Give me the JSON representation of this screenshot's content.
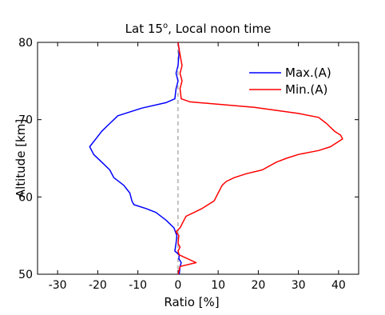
{
  "chart_data": {
    "type": "line",
    "title_main": "Lat 15",
    "title_degree": "o",
    "title_rest": ", Local noon time",
    "xlabel": "Ratio [%]",
    "ylabel": "Altitude [km]",
    "xlim": [
      -35,
      45
    ],
    "ylim": [
      50,
      80
    ],
    "xticks": [
      -30,
      -20,
      -10,
      0,
      10,
      20,
      30,
      40
    ],
    "yticks": [
      50,
      60,
      70,
      80
    ],
    "xtick_labels": [
      "-30",
      "-20",
      "-10",
      "0",
      "10",
      "20",
      "30",
      "40"
    ],
    "ytick_labels": [
      "50",
      "60",
      "70",
      "80"
    ],
    "zero_line": "dashed",
    "grid": false,
    "legend_position": "top-right",
    "series": [
      {
        "name": "Max.(A)",
        "color": "#0000ff",
        "points": [
          {
            "x": 0.0,
            "y": 80.0
          },
          {
            "x": 0.3,
            "y": 79.0
          },
          {
            "x": 0.0,
            "y": 77.0
          },
          {
            "x": -0.5,
            "y": 76.0
          },
          {
            "x": 0.0,
            "y": 75.0
          },
          {
            "x": -0.5,
            "y": 74.0
          },
          {
            "x": -0.8,
            "y": 72.7
          },
          {
            "x": -3.0,
            "y": 72.2
          },
          {
            "x": -9.0,
            "y": 71.5
          },
          {
            "x": -15.0,
            "y": 70.5
          },
          {
            "x": -17.0,
            "y": 69.5
          },
          {
            "x": -19.0,
            "y": 68.5
          },
          {
            "x": -20.5,
            "y": 67.5
          },
          {
            "x": -22.0,
            "y": 66.5
          },
          {
            "x": -21.0,
            "y": 65.5
          },
          {
            "x": -19.0,
            "y": 64.5
          },
          {
            "x": -17.0,
            "y": 63.5
          },
          {
            "x": -16.0,
            "y": 62.5
          },
          {
            "x": -13.5,
            "y": 61.5
          },
          {
            "x": -12.0,
            "y": 60.5
          },
          {
            "x": -11.5,
            "y": 59.5
          },
          {
            "x": -11.0,
            "y": 59.0
          },
          {
            "x": -8.0,
            "y": 58.5
          },
          {
            "x": -5.5,
            "y": 58.0
          },
          {
            "x": -3.0,
            "y": 57.0
          },
          {
            "x": -1.0,
            "y": 56.0
          },
          {
            "x": -0.3,
            "y": 55.0
          },
          {
            "x": -0.5,
            "y": 54.0
          },
          {
            "x": -0.8,
            "y": 53.0
          },
          {
            "x": 0.3,
            "y": 52.5
          },
          {
            "x": 0.2,
            "y": 52.0
          },
          {
            "x": 0.8,
            "y": 51.5
          },
          {
            "x": 0.5,
            "y": 51.0
          },
          {
            "x": 0.3,
            "y": 50.0
          }
        ]
      },
      {
        "name": "Min.(A)",
        "color": "#ff0000",
        "points": [
          {
            "x": 0.0,
            "y": 80.0
          },
          {
            "x": 0.3,
            "y": 79.0
          },
          {
            "x": 1.0,
            "y": 77.0
          },
          {
            "x": 0.5,
            "y": 76.0
          },
          {
            "x": 1.0,
            "y": 75.0
          },
          {
            "x": 0.5,
            "y": 74.0
          },
          {
            "x": 0.8,
            "y": 72.7
          },
          {
            "x": 3.0,
            "y": 72.3
          },
          {
            "x": 19.0,
            "y": 71.6
          },
          {
            "x": 30.0,
            "y": 70.8
          },
          {
            "x": 35.0,
            "y": 70.3
          },
          {
            "x": 37.0,
            "y": 69.5
          },
          {
            "x": 39.0,
            "y": 68.5
          },
          {
            "x": 40.5,
            "y": 68.0
          },
          {
            "x": 41.0,
            "y": 67.5
          },
          {
            "x": 38.0,
            "y": 66.5
          },
          {
            "x": 35.0,
            "y": 66.0
          },
          {
            "x": 30.0,
            "y": 65.5
          },
          {
            "x": 27.0,
            "y": 65.0
          },
          {
            "x": 24.5,
            "y": 64.5
          },
          {
            "x": 21.0,
            "y": 63.5
          },
          {
            "x": 17.0,
            "y": 63.0
          },
          {
            "x": 14.0,
            "y": 62.5
          },
          {
            "x": 12.0,
            "y": 62.0
          },
          {
            "x": 11.0,
            "y": 61.5
          },
          {
            "x": 10.0,
            "y": 60.5
          },
          {
            "x": 9.0,
            "y": 59.5
          },
          {
            "x": 6.0,
            "y": 58.5
          },
          {
            "x": 4.0,
            "y": 58.0
          },
          {
            "x": 2.0,
            "y": 57.5
          },
          {
            "x": 1.5,
            "y": 57.0
          },
          {
            "x": 0.5,
            "y": 56.0
          },
          {
            "x": -0.5,
            "y": 55.5
          },
          {
            "x": 0.2,
            "y": 55.0
          },
          {
            "x": 0.0,
            "y": 54.0
          },
          {
            "x": 0.5,
            "y": 53.5
          },
          {
            "x": 0.0,
            "y": 53.0
          },
          {
            "x": 0.3,
            "y": 52.5
          },
          {
            "x": 4.5,
            "y": 51.5
          },
          {
            "x": 0.5,
            "y": 51.0
          },
          {
            "x": 0.0,
            "y": 50.0
          }
        ]
      }
    ]
  }
}
